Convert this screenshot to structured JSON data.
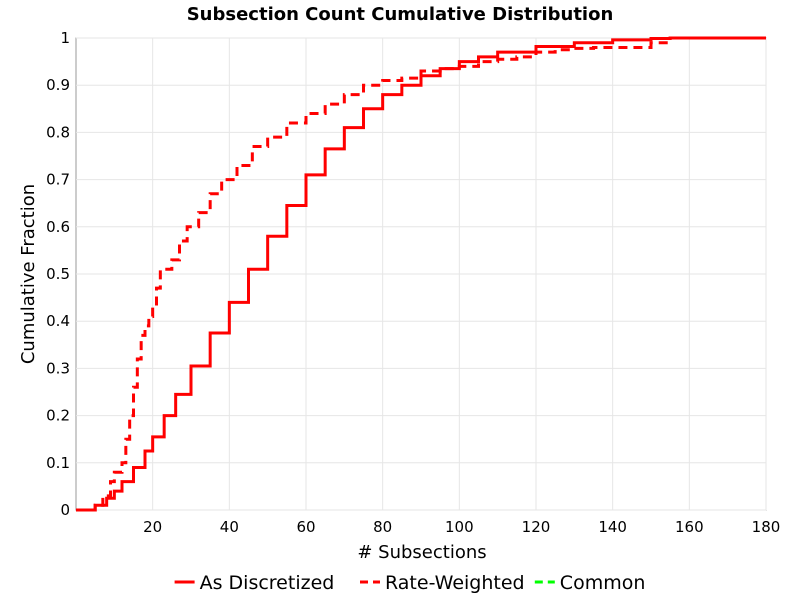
{
  "chart_data": {
    "type": "line",
    "title": "Subsection Count Cumulative Distribution",
    "xlabel": "# Subsections",
    "ylabel": "Cumulative Fraction",
    "xlim": [
      0,
      180
    ],
    "ylim": [
      0,
      1
    ],
    "x_ticks": [
      "20",
      "40",
      "60",
      "80",
      "100",
      "120",
      "140",
      "160",
      "180"
    ],
    "y_ticks": [
      "0",
      "0.1",
      "0.2",
      "0.3",
      "0.4",
      "0.5",
      "0.6",
      "0.7",
      "0.8",
      "0.9",
      "1"
    ],
    "grid": true,
    "legend_position": "bottom",
    "series": [
      {
        "name": "As Discretized",
        "color": "#ff0000",
        "line_style": "solid",
        "x": [
          0,
          5,
          8,
          10,
          12,
          15,
          18,
          20,
          23,
          26,
          30,
          35,
          40,
          45,
          50,
          55,
          60,
          65,
          70,
          75,
          80,
          85,
          90,
          95,
          100,
          105,
          110,
          120,
          130,
          140,
          150,
          155,
          160,
          180
        ],
        "y": [
          0,
          0.01,
          0.025,
          0.04,
          0.06,
          0.09,
          0.125,
          0.155,
          0.2,
          0.245,
          0.305,
          0.375,
          0.44,
          0.51,
          0.58,
          0.645,
          0.71,
          0.765,
          0.81,
          0.85,
          0.88,
          0.9,
          0.92,
          0.935,
          0.95,
          0.96,
          0.97,
          0.982,
          0.99,
          0.996,
          0.999,
          1,
          1,
          1
        ]
      },
      {
        "name": "Rate-Weighted",
        "color": "#ff0000",
        "line_style": "dashed",
        "x": [
          0,
          5,
          7,
          9,
          10,
          12,
          13,
          14,
          15,
          16,
          17,
          18,
          19,
          20,
          21,
          22,
          25,
          27,
          29,
          32,
          35,
          38,
          42,
          46,
          50,
          55,
          60,
          65,
          70,
          75,
          80,
          85,
          90,
          95,
          100,
          105,
          110,
          115,
          120,
          125,
          130,
          135,
          145,
          150,
          155,
          160,
          180
        ],
        "y": [
          0,
          0.01,
          0.03,
          0.06,
          0.08,
          0.1,
          0.15,
          0.2,
          0.26,
          0.32,
          0.37,
          0.39,
          0.41,
          0.43,
          0.47,
          0.51,
          0.53,
          0.57,
          0.6,
          0.63,
          0.67,
          0.7,
          0.73,
          0.77,
          0.79,
          0.82,
          0.84,
          0.86,
          0.88,
          0.9,
          0.91,
          0.915,
          0.93,
          0.935,
          0.94,
          0.95,
          0.955,
          0.96,
          0.97,
          0.975,
          0.978,
          0.98,
          0.98,
          0.99,
          1,
          1,
          1
        ]
      },
      {
        "name": "Common",
        "color": "#00ff00",
        "line_style": "dashed",
        "x": [],
        "y": []
      }
    ]
  }
}
